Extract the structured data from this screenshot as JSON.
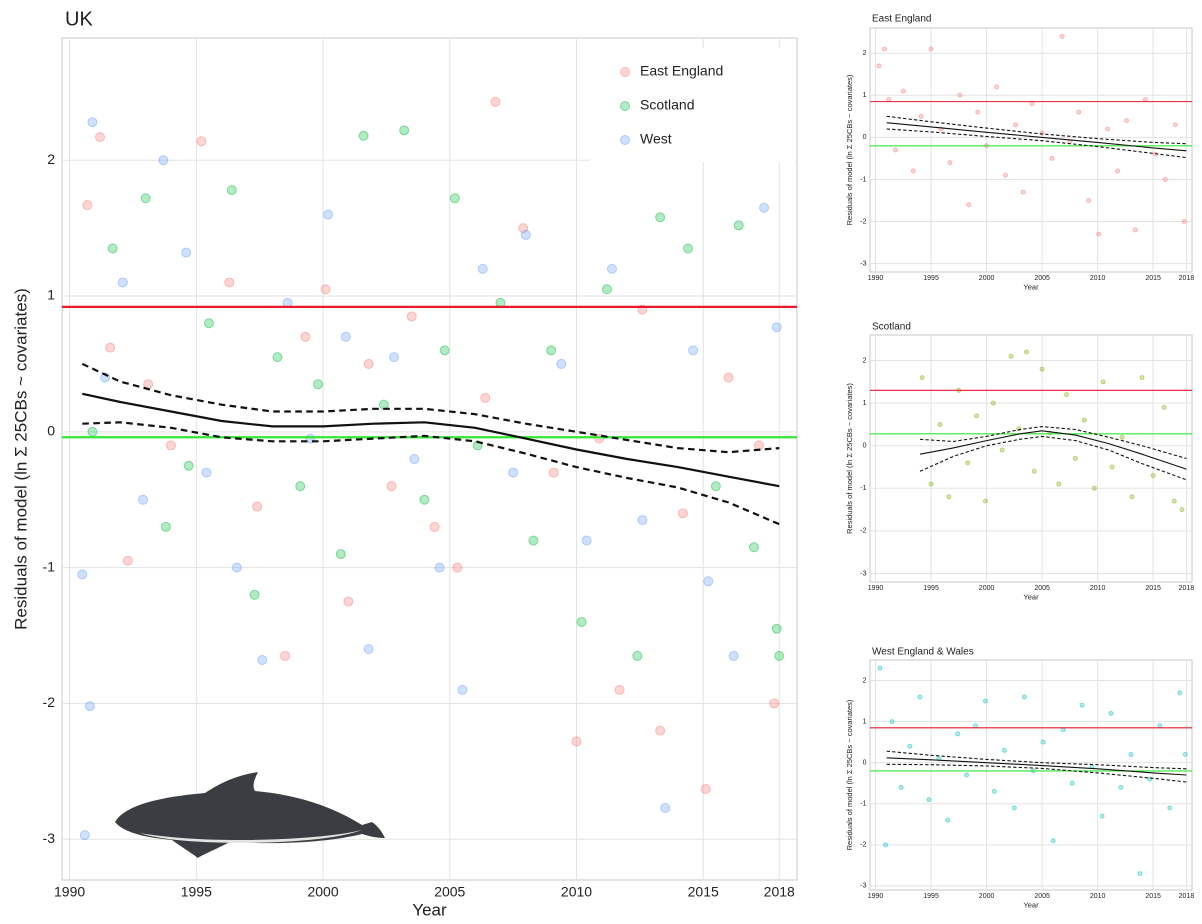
{
  "chart_data": [
    {
      "type": "scatter",
      "title": "UK",
      "x_label": "Year",
      "y_label": "Residuals of model (ln Σ 25CBs ~ covariates)",
      "xlim": [
        1989.7,
        2018.7
      ],
      "ylim": [
        -3.3,
        2.9
      ],
      "xticks": [
        1990,
        1995,
        2000,
        2005,
        2010,
        2015,
        2018
      ],
      "yticks": [
        -3,
        -2,
        -1,
        0,
        1,
        2
      ],
      "grid": true,
      "legend": "top-right",
      "series": [
        {
          "name": "East England",
          "color": "#f8766d",
          "x": [
            1990.7,
            1991.2,
            1991.6,
            1992.3,
            1993.1,
            1994.0,
            1995.2,
            1996.3,
            1997.4,
            1998.5,
            1999.3,
            2000.1,
            2001.0,
            2001.8,
            2002.7,
            2003.5,
            2004.4,
            2005.3,
            2006.4,
            2006.8,
            2007.9,
            2009.1,
            2010.0,
            2010.9,
            2011.7,
            2012.6,
            2013.3,
            2014.2,
            2015.1,
            2016.0,
            2017.2,
            2017.8
          ],
          "values": [
            1.67,
            2.17,
            0.62,
            -0.95,
            0.35,
            -0.1,
            2.14,
            1.1,
            -0.55,
            -1.65,
            0.7,
            1.05,
            -1.25,
            0.5,
            -0.4,
            0.85,
            -0.7,
            -1.0,
            0.25,
            2.43,
            1.5,
            -0.3,
            -2.28,
            -0.05,
            -1.9,
            0.9,
            -2.2,
            -0.6,
            -2.63,
            0.4,
            -0.1,
            -2.0
          ]
        },
        {
          "name": "Scotland",
          "color": "#00ba38",
          "x": [
            1990.9,
            1991.7,
            1993.0,
            1993.8,
            1994.7,
            1995.5,
            1996.4,
            1997.3,
            1998.2,
            1999.1,
            1999.8,
            2000.7,
            2001.6,
            2002.4,
            2003.2,
            2004.0,
            2004.8,
            2005.2,
            2006.1,
            2007.0,
            2008.3,
            2009.0,
            2010.2,
            2011.2,
            2012.4,
            2013.3,
            2014.4,
            2015.5,
            2016.4,
            2017.0,
            2017.9,
            2018.0
          ],
          "values": [
            0.0,
            1.35,
            1.72,
            -0.7,
            -0.25,
            0.8,
            1.78,
            -1.2,
            0.55,
            -0.4,
            0.35,
            -0.9,
            2.18,
            0.2,
            2.22,
            -0.5,
            0.6,
            1.72,
            -0.1,
            0.95,
            -0.8,
            0.6,
            -1.4,
            1.05,
            -1.65,
            1.58,
            1.35,
            -0.4,
            1.52,
            -0.85,
            -1.45,
            -1.65
          ]
        },
        {
          "name": "West",
          "color": "#619cff",
          "x": [
            1990.5,
            1990.8,
            1990.9,
            1991.4,
            1992.1,
            1992.9,
            1993.7,
            1994.6,
            1995.4,
            1996.6,
            1997.6,
            1998.6,
            1999.5,
            2000.2,
            2000.9,
            2001.8,
            2002.8,
            2003.6,
            2004.6,
            2005.5,
            2006.3,
            2007.5,
            2008.0,
            2009.4,
            2010.4,
            2011.4,
            2012.6,
            2013.5,
            2014.6,
            2015.2,
            2016.2,
            2017.4,
            2017.9,
            1990.6
          ],
          "values": [
            -1.05,
            -2.02,
            2.28,
            0.4,
            1.1,
            -0.5,
            2.0,
            1.32,
            -0.3,
            -1.0,
            -1.68,
            0.95,
            -0.05,
            1.6,
            0.7,
            -1.6,
            0.55,
            -0.2,
            -1.0,
            -1.9,
            1.2,
            -0.3,
            1.45,
            0.5,
            -0.8,
            1.2,
            -0.65,
            -2.77,
            0.6,
            -1.1,
            -1.65,
            1.65,
            0.77,
            -2.97
          ]
        }
      ],
      "hlines": [
        {
          "value": 0.92,
          "color": "#e8192c"
        },
        {
          "value": -0.04,
          "color": "#33e633"
        }
      ],
      "trend": {
        "x": [
          1990.5,
          1992,
          1994,
          1996,
          1998,
          2000,
          2002,
          2004,
          2006,
          2008,
          2010,
          2012,
          2014,
          2016,
          2018
        ],
        "fit": [
          0.28,
          0.22,
          0.15,
          0.08,
          0.04,
          0.04,
          0.06,
          0.07,
          0.03,
          -0.05,
          -0.13,
          -0.2,
          -0.26,
          -0.33,
          -0.4
        ],
        "upper": [
          0.5,
          0.37,
          0.27,
          0.2,
          0.15,
          0.15,
          0.17,
          0.17,
          0.13,
          0.06,
          0.0,
          -0.06,
          -0.12,
          -0.15,
          -0.12
        ],
        "lower": [
          0.06,
          0.07,
          0.03,
          -0.04,
          -0.07,
          -0.07,
          -0.05,
          -0.03,
          -0.07,
          -0.16,
          -0.26,
          -0.34,
          -0.41,
          -0.52,
          -0.68
        ]
      }
    },
    {
      "type": "scatter",
      "title": "East England",
      "x_label": "Year",
      "y_label": "Residuals of model (ln Σ 25CBs ~ covariates)",
      "xlim": [
        1989.5,
        2018.5
      ],
      "ylim": [
        -3.2,
        2.6
      ],
      "xticks": [
        1990,
        1995,
        2000,
        2005,
        2010,
        2015,
        2018
      ],
      "yticks": [
        -3,
        -2,
        -1,
        0,
        1,
        2
      ],
      "grid": true,
      "series": [
        {
          "color": "#f8766d",
          "x": [
            1990.3,
            1990.8,
            1991.2,
            1991.8,
            1992.5,
            1993.4,
            1994.1,
            1995.0,
            1995.9,
            1996.7,
            1997.6,
            1998.4,
            1999.2,
            2000.0,
            2000.9,
            2001.7,
            2002.6,
            2003.3,
            2004.1,
            2005.0,
            2005.9,
            2006.8,
            2007.5,
            2008.3,
            2009.2,
            2010.1,
            2010.9,
            2011.8,
            2012.6,
            2013.4,
            2014.3,
            2015.2,
            2016.1,
            2017.0,
            2017.8
          ],
          "values": [
            1.7,
            2.1,
            0.9,
            -0.3,
            1.1,
            -0.8,
            0.5,
            2.1,
            0.2,
            -0.6,
            1.0,
            -1.6,
            0.6,
            -0.2,
            1.2,
            -0.9,
            0.3,
            -1.3,
            0.8,
            0.1,
            -0.5,
            2.4,
            -0.1,
            0.6,
            -1.5,
            -2.3,
            0.2,
            -0.8,
            0.4,
            -2.2,
            0.9,
            -0.4,
            -1.0,
            0.3,
            -2.0
          ]
        }
      ],
      "hlines": [
        {
          "value": 0.85,
          "color": "#e8192c"
        },
        {
          "value": -0.2,
          "color": "#33e633"
        }
      ],
      "trend": {
        "x": [
          1991,
          1995,
          2000,
          2005,
          2010,
          2015,
          2018
        ],
        "fit": [
          0.35,
          0.25,
          0.12,
          0.0,
          -0.12,
          -0.25,
          -0.32
        ],
        "upper": [
          0.5,
          0.37,
          0.22,
          0.08,
          -0.03,
          -0.12,
          -0.15
        ],
        "lower": [
          0.2,
          0.13,
          0.02,
          -0.08,
          -0.22,
          -0.38,
          -0.48
        ]
      }
    },
    {
      "type": "scatter",
      "title": "Scotland",
      "x_label": "Year",
      "y_label": "Residuals of model (ln Σ 25CBs ~ covariates)",
      "xlim": [
        1989.5,
        2018.5
      ],
      "ylim": [
        -3.2,
        2.6
      ],
      "xticks": [
        1990,
        1995,
        2000,
        2005,
        2010,
        2015,
        2018
      ],
      "yticks": [
        -3,
        -2,
        -1,
        0,
        1,
        2
      ],
      "grid": true,
      "series": [
        {
          "color": "#7cae00",
          "x": [
            1994.2,
            1995.0,
            1995.8,
            1996.6,
            1997.5,
            1998.3,
            1999.1,
            1999.9,
            2000.6,
            2001.4,
            2002.2,
            2002.9,
            2003.6,
            2004.3,
            2005.0,
            2005.7,
            2006.5,
            2007.2,
            2008.0,
            2008.8,
            2009.7,
            2010.5,
            2011.3,
            2012.2,
            2013.1,
            2014.0,
            2015.0,
            2016.0,
            2016.9,
            2017.6
          ],
          "values": [
            1.6,
            -0.9,
            0.5,
            -1.2,
            1.3,
            -0.4,
            0.7,
            -1.3,
            1.0,
            -0.1,
            2.1,
            0.4,
            2.2,
            -0.6,
            1.8,
            0.3,
            -0.9,
            1.2,
            -0.3,
            0.6,
            -1.0,
            1.5,
            -0.5,
            0.2,
            -1.2,
            1.6,
            -0.7,
            0.9,
            -1.3,
            -1.5
          ]
        }
      ],
      "hlines": [
        {
          "value": 1.3,
          "color": "#e8192c"
        },
        {
          "value": 0.28,
          "color": "#33e633"
        }
      ],
      "trend": {
        "x": [
          1994,
          1997,
          2000,
          2003,
          2005,
          2008,
          2011,
          2014,
          2018
        ],
        "fit": [
          -0.2,
          -0.05,
          0.12,
          0.28,
          0.35,
          0.25,
          0.05,
          -0.2,
          -0.55
        ],
        "upper": [
          0.15,
          0.1,
          0.22,
          0.38,
          0.45,
          0.38,
          0.2,
          0.0,
          -0.3
        ],
        "lower": [
          -0.6,
          -0.25,
          0.0,
          0.15,
          0.22,
          0.12,
          -0.1,
          -0.42,
          -0.8
        ]
      }
    },
    {
      "type": "scatter",
      "title": "West England & Wales",
      "x_label": "Year",
      "y_label": "Residuals of model (ln Σ 25CBs ~ covariates)",
      "xlim": [
        1989.5,
        2018.5
      ],
      "ylim": [
        -3.1,
        2.5
      ],
      "xticks": [
        1990,
        1995,
        2000,
        2005,
        2010,
        2015,
        2018
      ],
      "yticks": [
        -3,
        -2,
        -1,
        0,
        1,
        2
      ],
      "grid": true,
      "series": [
        {
          "color": "#00bfc4",
          "x": [
            1990.4,
            1990.9,
            1991.5,
            1992.3,
            1993.1,
            1994.0,
            1994.8,
            1995.7,
            1996.5,
            1997.4,
            1998.2,
            1999.0,
            1999.9,
            2000.7,
            2001.6,
            2002.5,
            2003.4,
            2004.2,
            2005.1,
            2006.0,
            2006.9,
            2007.7,
            2008.6,
            2009.5,
            2010.4,
            2011.2,
            2012.1,
            2013.0,
            2013.8,
            2014.7,
            2015.6,
            2016.5,
            2017.4,
            2017.9
          ],
          "values": [
            2.3,
            -2.0,
            1.0,
            -0.6,
            0.4,
            1.6,
            -0.9,
            0.1,
            -1.4,
            0.7,
            -0.3,
            0.9,
            1.5,
            -0.7,
            0.3,
            -1.1,
            1.6,
            -0.2,
            0.5,
            -1.9,
            0.8,
            -0.5,
            1.4,
            -0.1,
            -1.3,
            1.2,
            -0.6,
            0.2,
            -2.7,
            -0.4,
            0.9,
            -1.1,
            1.7,
            0.2
          ]
        }
      ],
      "hlines": [
        {
          "value": 0.85,
          "color": "#e8192c"
        },
        {
          "value": -0.2,
          "color": "#33e633"
        }
      ],
      "trend": {
        "x": [
          1991,
          1995,
          2000,
          2005,
          2010,
          2015,
          2018
        ],
        "fit": [
          0.12,
          0.07,
          0.0,
          -0.07,
          -0.15,
          -0.25,
          -0.3
        ],
        "upper": [
          0.28,
          0.18,
          0.08,
          0.0,
          -0.05,
          -0.12,
          -0.15
        ],
        "lower": [
          -0.04,
          -0.05,
          -0.08,
          -0.14,
          -0.25,
          -0.38,
          -0.47
        ]
      }
    }
  ]
}
